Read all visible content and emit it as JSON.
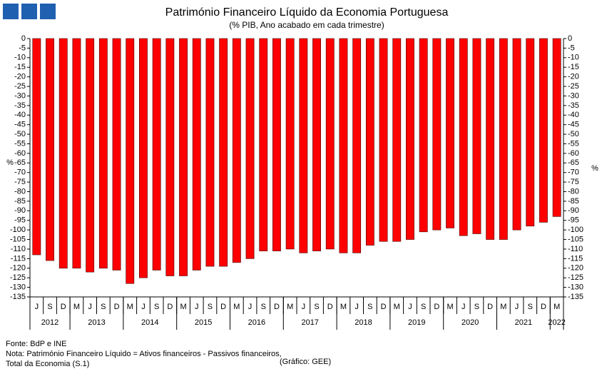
{
  "chart_data": {
    "type": "bar",
    "title": "Património Financeiro Líquido da Economia Portuguesa",
    "subtitle": "(% PIB, Ano acabado em cada trimestre)",
    "y_label": "%",
    "y2_label": "%",
    "categories": [
      "J",
      "S",
      "D",
      "M",
      "J",
      "S",
      "D",
      "M",
      "J",
      "S",
      "D",
      "M",
      "J",
      "S",
      "D",
      "M",
      "J",
      "S",
      "D",
      "M",
      "J",
      "S",
      "D",
      "M",
      "J",
      "S",
      "D",
      "M",
      "J",
      "S",
      "D",
      "M",
      "J",
      "S",
      "D",
      "M",
      "J",
      "S",
      "D",
      "M"
    ],
    "years": [
      "2012",
      "2013",
      "2014",
      "2015",
      "2016",
      "2017",
      "2018",
      "2019",
      "2020",
      "2021",
      "2022"
    ],
    "values": [
      -113,
      -116,
      -120,
      -120,
      -122,
      -120,
      -121,
      -128,
      -125,
      -121,
      -124,
      -124,
      -121,
      -119,
      -119,
      -117,
      -115,
      -111,
      -111,
      -110,
      -112,
      -111,
      -110,
      -112,
      -112,
      -108,
      -106,
      -106,
      -105,
      -101,
      -100,
      -99,
      -103,
      -102,
      -105,
      -105,
      -100,
      -98,
      -96,
      -93
    ],
    "color": "#ff0000",
    "ylim": [
      -135,
      0
    ],
    "yticks": [
      0,
      -5,
      -10,
      -15,
      -20,
      -25,
      -30,
      -35,
      -40,
      -45,
      -50,
      -55,
      -60,
      -65,
      -70,
      -75,
      -80,
      -85,
      -90,
      -95,
      -100,
      -105,
      -110,
      -115,
      -120,
      -125,
      -130,
      -135
    ],
    "y2lim": [
      -135,
      0
    ],
    "y2ticks": [
      0,
      -5,
      -10,
      -15,
      -20,
      -25,
      -30,
      -35,
      -40,
      -45,
      -50,
      -55,
      -60,
      -65,
      -70,
      -75,
      -80,
      -85,
      -90,
      -95,
      -100,
      -105,
      -110,
      -115,
      -120,
      -125,
      -130,
      -135
    ],
    "grid": false,
    "notes": [
      "Fonte: BdP e INE",
      "Nota: Património Financeiro Líquido = Ativos financeiros - Passivos financeiros,",
      "Total da Economia (S.1)"
    ],
    "credit": "(Gráfico: GEE)"
  }
}
